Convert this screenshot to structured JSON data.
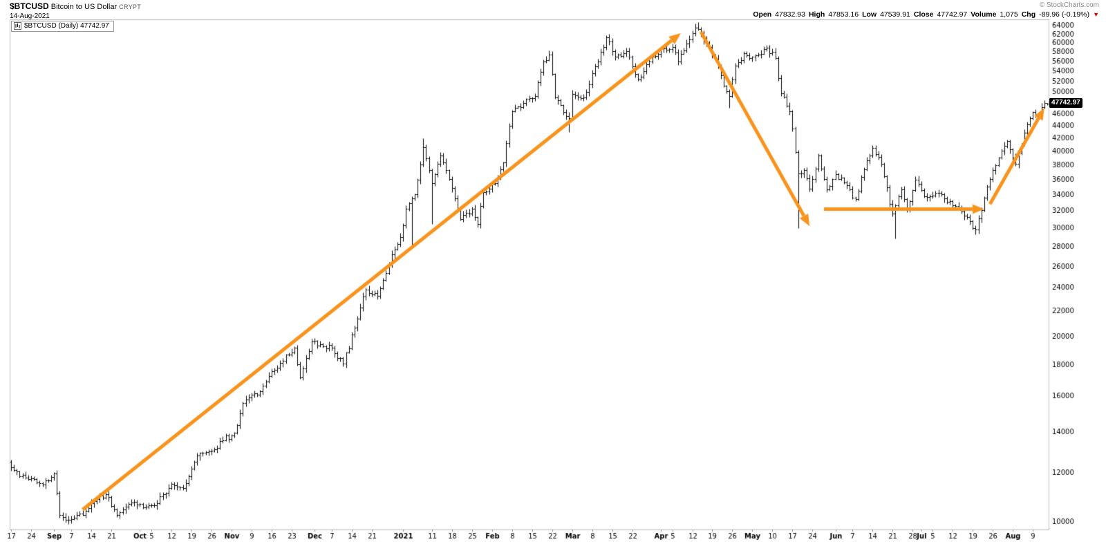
{
  "header": {
    "symbol": "$BTCUSD",
    "name": "Bitcoin to US Dollar",
    "exchange": "CRYPT",
    "date": "14-Aug-2021",
    "copyright": "© StockCharts.com",
    "quote": {
      "open_label": "Open",
      "open": "47832.93",
      "high_label": "High",
      "high": "47853.16",
      "low_label": "Low",
      "low": "47539.91",
      "close_label": "Close",
      "close": "47742.97",
      "volume_label": "Volume",
      "volume": "1,075",
      "chg_label": "Chg",
      "chg": "-89.96 (-0.19%)",
      "chg_arrow": "▼"
    }
  },
  "legend": {
    "text": "$BTCUSD (Daily) 47742.97"
  },
  "price_tag": "47742.97",
  "colors": {
    "bar": "#000000",
    "annotation": "#f7941e",
    "axis_text": "#000000",
    "plot_border": "#b8b8b8",
    "tag_bg": "#000000",
    "tag_text": "#ffffff",
    "chg_negative": "#cc0000"
  },
  "chart_data": {
    "type": "bar",
    "subtype": "ohlc-daily",
    "title": "$BTCUSD (Daily)",
    "scale": "log",
    "grid": "off",
    "x_start": "2020-08-17",
    "x_end": "2021-08-14",
    "price_range": {
      "top": 65500,
      "bottom": 9700
    },
    "y_ticks": [
      64000,
      62000,
      60000,
      58000,
      56000,
      54000,
      52000,
      50000,
      46000,
      44000,
      42000,
      40000,
      38000,
      36000,
      34000,
      32000,
      30000,
      28000,
      26000,
      24000,
      22000,
      20000,
      18000,
      16000,
      14000,
      12000,
      10000
    ],
    "x_ticks": [
      {
        "d": "2020-08-17",
        "l": "17"
      },
      {
        "d": "2020-08-24",
        "l": "24"
      },
      {
        "d": "2020-09-01",
        "l": "Sep",
        "b": 1
      },
      {
        "d": "2020-09-07",
        "l": "7"
      },
      {
        "d": "2020-09-14",
        "l": "14"
      },
      {
        "d": "2020-09-21",
        "l": "21"
      },
      {
        "d": "2020-10-01",
        "l": "Oct",
        "b": 1
      },
      {
        "d": "2020-10-05",
        "l": "5"
      },
      {
        "d": "2020-10-12",
        "l": "12"
      },
      {
        "d": "2020-10-19",
        "l": "19"
      },
      {
        "d": "2020-10-26",
        "l": "26"
      },
      {
        "d": "2020-11-02",
        "l": "Nov",
        "b": 1
      },
      {
        "d": "2020-11-09",
        "l": "9"
      },
      {
        "d": "2020-11-16",
        "l": "16"
      },
      {
        "d": "2020-11-23",
        "l": "23"
      },
      {
        "d": "2020-12-01",
        "l": "Dec",
        "b": 1
      },
      {
        "d": "2020-12-07",
        "l": "7"
      },
      {
        "d": "2020-12-14",
        "l": "14"
      },
      {
        "d": "2020-12-21",
        "l": "21"
      },
      {
        "d": "2021-01-01",
        "l": "2021",
        "b": 1
      },
      {
        "d": "2021-01-11",
        "l": "11"
      },
      {
        "d": "2021-01-18",
        "l": "18"
      },
      {
        "d": "2021-01-25",
        "l": "25"
      },
      {
        "d": "2021-02-01",
        "l": "Feb",
        "b": 1
      },
      {
        "d": "2021-02-08",
        "l": "8"
      },
      {
        "d": "2021-02-15",
        "l": "15"
      },
      {
        "d": "2021-02-22",
        "l": "22"
      },
      {
        "d": "2021-03-01",
        "l": "Mar",
        "b": 1
      },
      {
        "d": "2021-03-08",
        "l": "8"
      },
      {
        "d": "2021-03-15",
        "l": "15"
      },
      {
        "d": "2021-03-22",
        "l": "22"
      },
      {
        "d": "2021-04-01",
        "l": "Apr",
        "b": 1
      },
      {
        "d": "2021-04-05",
        "l": "5"
      },
      {
        "d": "2021-04-12",
        "l": "12"
      },
      {
        "d": "2021-04-19",
        "l": "19"
      },
      {
        "d": "2021-04-26",
        "l": "26"
      },
      {
        "d": "2021-05-03",
        "l": "May",
        "b": 1
      },
      {
        "d": "2021-05-10",
        "l": "10"
      },
      {
        "d": "2021-05-17",
        "l": "17"
      },
      {
        "d": "2021-05-24",
        "l": "24"
      },
      {
        "d": "2021-06-01",
        "l": "Jun",
        "b": 1
      },
      {
        "d": "2021-06-07",
        "l": "7"
      },
      {
        "d": "2021-06-14",
        "l": "14"
      },
      {
        "d": "2021-06-21",
        "l": "21"
      },
      {
        "d": "2021-06-28",
        "l": "28"
      },
      {
        "d": "2021-07-01",
        "l": "Jul",
        "b": 1
      },
      {
        "d": "2021-07-05",
        "l": "5"
      },
      {
        "d": "2021-07-12",
        "l": "12"
      },
      {
        "d": "2021-07-19",
        "l": "19"
      },
      {
        "d": "2021-07-26",
        "l": "26"
      },
      {
        "d": "2021-08-02",
        "l": "Aug",
        "b": 1
      },
      {
        "d": "2021-08-09",
        "l": "9"
      }
    ],
    "last": {
      "open": 47832.93,
      "high": 47853.16,
      "low": 47539.91,
      "close": 47742.97
    },
    "close_anchors": [
      [
        "2020-08-17",
        12250
      ],
      [
        "2020-08-20",
        11850
      ],
      [
        "2020-08-24",
        11750
      ],
      [
        "2020-08-28",
        11480
      ],
      [
        "2020-09-01",
        11950
      ],
      [
        "2020-09-03",
        10240
      ],
      [
        "2020-09-05",
        10050
      ],
      [
        "2020-09-08",
        10130
      ],
      [
        "2020-09-12",
        10390
      ],
      [
        "2020-09-15",
        10790
      ],
      [
        "2020-09-19",
        11080
      ],
      [
        "2020-09-23",
        10230
      ],
      [
        "2020-09-28",
        10720
      ],
      [
        "2020-10-02",
        10540
      ],
      [
        "2020-10-06",
        10620
      ],
      [
        "2020-10-09",
        11060
      ],
      [
        "2020-10-12",
        11520
      ],
      [
        "2020-10-16",
        11320
      ],
      [
        "2020-10-21",
        12780
      ],
      [
        "2020-10-26",
        13020
      ],
      [
        "2020-10-30",
        13560
      ],
      [
        "2020-11-03",
        13940
      ],
      [
        "2020-11-06",
        15560
      ],
      [
        "2020-11-12",
        16280
      ],
      [
        "2020-11-17",
        17650
      ],
      [
        "2020-11-21",
        18650
      ],
      [
        "2020-11-24",
        19140
      ],
      [
        "2020-11-26",
        17140
      ],
      [
        "2020-11-30",
        19590
      ],
      [
        "2020-12-03",
        19420
      ],
      [
        "2020-12-07",
        19160
      ],
      [
        "2020-12-11",
        18040
      ],
      [
        "2020-12-16",
        21340
      ],
      [
        "2020-12-19",
        23840
      ],
      [
        "2020-12-23",
        23240
      ],
      [
        "2020-12-27",
        26250
      ],
      [
        "2020-12-31",
        28990
      ],
      [
        "2021-01-02",
        32190
      ],
      [
        "2021-01-05",
        33990
      ],
      [
        "2021-01-08",
        40600
      ],
      [
        "2021-01-11",
        35440
      ],
      [
        "2021-01-14",
        39390
      ],
      [
        "2021-01-17",
        35990
      ],
      [
        "2021-01-21",
        30990
      ],
      [
        "2021-01-25",
        32250
      ],
      [
        "2021-01-27",
        30410
      ],
      [
        "2021-01-29",
        34300
      ],
      [
        "2021-02-02",
        35510
      ],
      [
        "2021-02-05",
        38290
      ],
      [
        "2021-02-08",
        46440
      ],
      [
        "2021-02-12",
        47950
      ],
      [
        "2021-02-16",
        49200
      ],
      [
        "2021-02-19",
        55890
      ],
      [
        "2021-02-21",
        57410
      ],
      [
        "2021-02-23",
        48900
      ],
      [
        "2021-02-26",
        46310
      ],
      [
        "2021-02-28",
        45240
      ],
      [
        "2021-03-01",
        49590
      ],
      [
        "2021-03-05",
        48920
      ],
      [
        "2021-03-09",
        54900
      ],
      [
        "2021-03-13",
        61190
      ],
      [
        "2021-03-16",
        56900
      ],
      [
        "2021-03-20",
        58090
      ],
      [
        "2021-03-24",
        52290
      ],
      [
        "2021-03-28",
        55950
      ],
      [
        "2021-04-01",
        58740
      ],
      [
        "2021-04-05",
        59120
      ],
      [
        "2021-04-07",
        55970
      ],
      [
        "2021-04-10",
        59790
      ],
      [
        "2021-04-13",
        63500
      ],
      [
        "2021-04-14",
        63210
      ],
      [
        "2021-04-17",
        60010
      ],
      [
        "2021-04-20",
        56470
      ],
      [
        "2021-04-23",
        51100
      ],
      [
        "2021-04-25",
        49100
      ],
      [
        "2021-04-27",
        55050
      ],
      [
        "2021-04-30",
        57750
      ],
      [
        "2021-05-02",
        56590
      ],
      [
        "2021-05-05",
        57470
      ],
      [
        "2021-05-08",
        58890
      ],
      [
        "2021-05-11",
        56690
      ],
      [
        "2021-05-13",
        49690
      ],
      [
        "2021-05-16",
        46440
      ],
      [
        "2021-05-17",
        43540
      ],
      [
        "2021-05-19",
        36750
      ],
      [
        "2021-05-21",
        37290
      ],
      [
        "2021-05-23",
        34710
      ],
      [
        "2021-05-26",
        39290
      ],
      [
        "2021-05-29",
        34610
      ],
      [
        "2021-06-01",
        36690
      ],
      [
        "2021-06-04",
        35550
      ],
      [
        "2021-06-08",
        33390
      ],
      [
        "2021-06-11",
        37340
      ],
      [
        "2021-06-14",
        40510
      ],
      [
        "2021-06-17",
        38090
      ],
      [
        "2021-06-21",
        31650
      ],
      [
        "2021-06-24",
        34650
      ],
      [
        "2021-06-26",
        32280
      ],
      [
        "2021-06-29",
        35900
      ],
      [
        "2021-07-02",
        33800
      ],
      [
        "2021-07-06",
        34230
      ],
      [
        "2021-07-09",
        33510
      ],
      [
        "2021-07-13",
        32540
      ],
      [
        "2021-07-16",
        31390
      ],
      [
        "2021-07-20",
        29790
      ],
      [
        "2021-07-23",
        33630
      ],
      [
        "2021-07-26",
        37280
      ],
      [
        "2021-07-29",
        40040
      ],
      [
        "2021-07-31",
        41490
      ],
      [
        "2021-08-03",
        38150
      ],
      [
        "2021-08-06",
        42840
      ],
      [
        "2021-08-09",
        46280
      ],
      [
        "2021-08-11",
        45590
      ],
      [
        "2021-08-13",
        47840
      ],
      [
        "2021-08-14",
        47742.97
      ]
    ],
    "high_overrides": {
      "2021-01-08": 41950,
      "2021-02-21": 58350,
      "2021-03-13": 61780,
      "2021-04-13": 64500,
      "2021-04-14": 64850
    },
    "low_overrides": {
      "2021-01-04": 28050,
      "2021-01-11": 30420,
      "2021-02-28": 43000,
      "2021-04-25": 47080,
      "2021-05-19": 30000,
      "2021-06-22": 28850,
      "2021-07-20": 29300
    },
    "annotations": {
      "arrows": [
        {
          "from": [
            "2020-09-11",
            10450
          ],
          "to": [
            "2021-04-08",
            62200
          ]
        },
        {
          "from": [
            "2021-04-15",
            62500
          ],
          "to": [
            "2021-05-23",
            30200
          ]
        },
        {
          "from": [
            "2021-05-28",
            32200
          ],
          "to": [
            "2021-07-23",
            32200
          ]
        },
        {
          "from": [
            "2021-07-25",
            32800
          ],
          "to": [
            "2021-08-13",
            47000
          ]
        }
      ]
    }
  }
}
